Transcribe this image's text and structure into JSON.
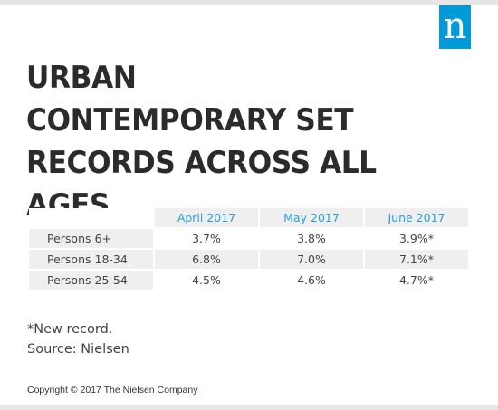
{
  "logo": {
    "letter": "n",
    "color": "#009ad9"
  },
  "chart_data": {
    "type": "table",
    "title": "URBAN CONTEMPORARY SET RECORDS ACROSS ALL AGES",
    "columns": [
      "April 2017",
      "May 2017",
      "June 2017"
    ],
    "rows": [
      {
        "label": "Persons 6+",
        "values": [
          "3.7%",
          "3.8%",
          "3.9%*"
        ]
      },
      {
        "label": "Persons 18-34",
        "values": [
          "6.8%",
          "7.0%",
          "7.1%*"
        ]
      },
      {
        "label": "Persons 25-54",
        "values": [
          "4.5%",
          "4.6%",
          "4.7%*"
        ]
      }
    ],
    "header_color": "#2a9fd6"
  },
  "notes": [
    "*New record.",
    "Source: Nielsen"
  ],
  "copyright": "Copyright © 2017 The Nielsen Company"
}
